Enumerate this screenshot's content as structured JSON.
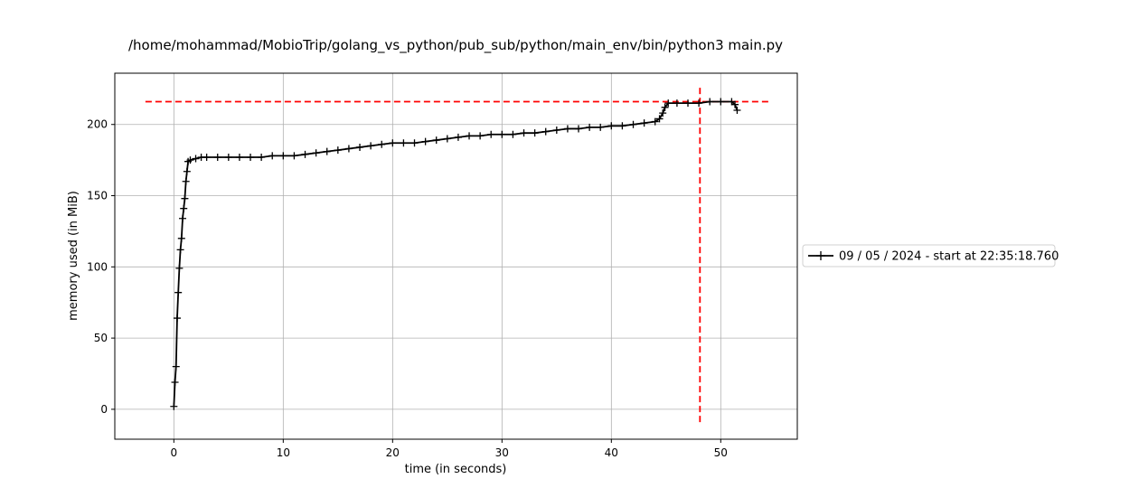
{
  "chart_data": {
    "type": "line",
    "title": "/home/mohammad/MobioTrip/golang_vs_python/pub_sub/python/main_env/bin/python3 main.py",
    "xlabel": "time (in seconds)",
    "ylabel": "memory used (in MiB)",
    "xlim": [
      -5.4,
      57.0
    ],
    "ylim": [
      -21,
      236
    ],
    "xticks": [
      0,
      10,
      20,
      30,
      40,
      50
    ],
    "yticks": [
      0,
      50,
      100,
      150,
      200
    ],
    "grid": true,
    "legend": {
      "placement": "outside-right",
      "entries": [
        "09 / 05 / 2024 - start at 22:35:18.760"
      ]
    },
    "colors": {
      "series": "#000000",
      "peak_markers": "#ff0000",
      "grid": "#b0b0b0"
    },
    "series": [
      {
        "name": "09 / 05 / 2024 - start at 22:35:18.760",
        "marker": "+",
        "x": [
          0.0,
          0.1,
          0.2,
          0.3,
          0.4,
          0.5,
          0.6,
          0.7,
          0.8,
          0.9,
          1.0,
          1.1,
          1.2,
          1.3,
          1.5,
          2.0,
          2.5,
          3.0,
          4.0,
          5.0,
          6.0,
          7.0,
          8.0,
          9.0,
          10.0,
          11.0,
          12.0,
          13.0,
          14.0,
          15.0,
          16.0,
          17.0,
          18.0,
          19.0,
          20.0,
          21.0,
          22.0,
          23.0,
          24.0,
          25.0,
          26.0,
          27.0,
          28.0,
          29.0,
          30.0,
          31.0,
          32.0,
          33.0,
          34.0,
          35.0,
          36.0,
          37.0,
          38.0,
          39.0,
          40.0,
          41.0,
          42.0,
          43.0,
          44.0,
          44.4,
          44.7,
          44.9,
          45.2,
          46.0,
          47.0,
          48.0,
          49.0,
          50.0,
          51.0,
          51.3,
          51.5
        ],
        "y": [
          2,
          19,
          30,
          64,
          82,
          99,
          112,
          120,
          134,
          141,
          148,
          160,
          167,
          174,
          175,
          176,
          177,
          177,
          177,
          177,
          177,
          177,
          177,
          178,
          178,
          178,
          179,
          180,
          181,
          182,
          183,
          184,
          185,
          186,
          187,
          187,
          187,
          188,
          189,
          190,
          191,
          192,
          192,
          193,
          193,
          193,
          194,
          194,
          195,
          196,
          197,
          197,
          198,
          198,
          199,
          199,
          200,
          201,
          202,
          204,
          208,
          212,
          215,
          215,
          215,
          215,
          216,
          216,
          216,
          214,
          210
        ]
      }
    ],
    "reference_lines": [
      {
        "orientation": "horizontal",
        "value": 216,
        "from": -2.6,
        "to": 54.4,
        "style": "dashed"
      },
      {
        "orientation": "vertical",
        "value": 48.1,
        "from": -9,
        "to": 227,
        "style": "dashed"
      }
    ]
  }
}
